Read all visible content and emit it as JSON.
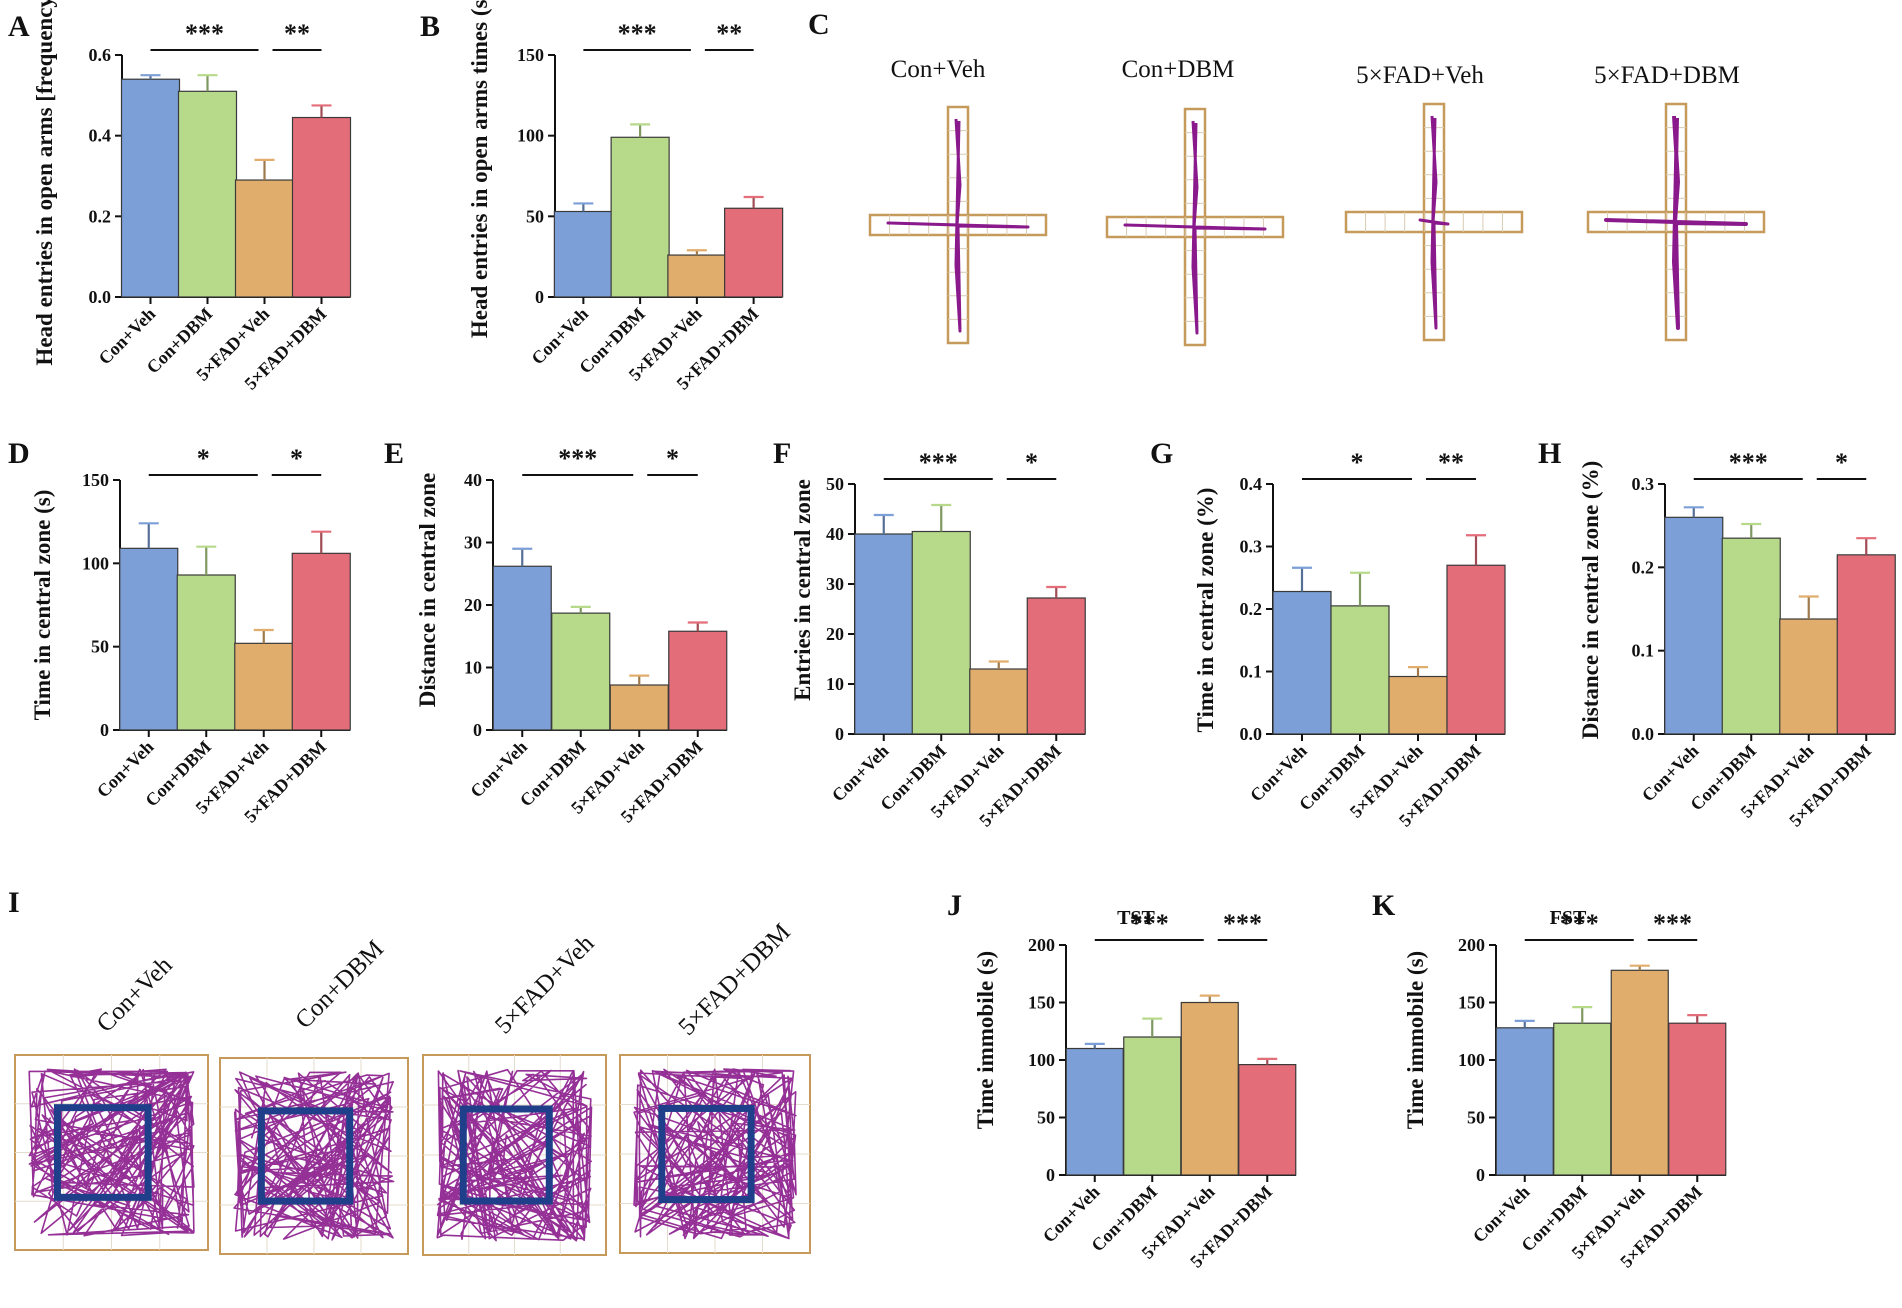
{
  "colors": {
    "Con+Veh": "#7b9fd6",
    "Con+DBM": "#b6d98a",
    "5×FAD+Veh": "#e0ad6c",
    "5×FAD+DBM": "#e36d78",
    "track": "#8a1a8c",
    "arena": "#c59a5a",
    "center_zone": "#1f3f8a"
  },
  "chart_data": [
    {
      "panel": "A",
      "type": "bar",
      "ylabel": "Head entries in open arms [frequency]",
      "categories": [
        "Con+Veh",
        "Con+DBM",
        "5×FAD+Veh",
        "5×FAD+DBM"
      ],
      "values": [
        0.54,
        0.51,
        0.29,
        0.445
      ],
      "errors": [
        0.01,
        0.04,
        0.05,
        0.03
      ],
      "ylim": [
        0,
        0.6
      ],
      "yticks": [
        "0.0",
        "0.2",
        "0.4",
        "0.6"
      ],
      "significance": [
        {
          "from": 0,
          "to": 2,
          "label": "***"
        },
        {
          "from": 2,
          "to": 3,
          "label": "**"
        }
      ]
    },
    {
      "panel": "B",
      "type": "bar",
      "ylabel": "Head entries in open arms times (s)",
      "categories": [
        "Con+Veh",
        "Con+DBM",
        "5×FAD+Veh",
        "5×FAD+DBM"
      ],
      "values": [
        53,
        99,
        26,
        55
      ],
      "errors": [
        5,
        8,
        3,
        7
      ],
      "ylim": [
        0,
        150
      ],
      "yticks": [
        "0",
        "50",
        "100",
        "150"
      ],
      "significance": [
        {
          "from": 0,
          "to": 2,
          "label": "***"
        },
        {
          "from": 2,
          "to": 3,
          "label": "**"
        }
      ]
    },
    {
      "panel": "D",
      "type": "bar",
      "ylabel": "Time in central zone (s)",
      "categories": [
        "Con+Veh",
        "Con+DBM",
        "5×FAD+Veh",
        "5×FAD+DBM"
      ],
      "values": [
        109,
        93,
        52,
        106
      ],
      "errors": [
        15,
        17,
        8,
        13
      ],
      "ylim": [
        0,
        150
      ],
      "yticks": [
        "0",
        "50",
        "100",
        "150"
      ],
      "significance": [
        {
          "from": 0,
          "to": 2,
          "label": "*"
        },
        {
          "from": 2,
          "to": 3,
          "label": "*"
        }
      ]
    },
    {
      "panel": "E",
      "type": "bar",
      "ylabel": "Distance in central zone",
      "categories": [
        "Con+Veh",
        "Con+DBM",
        "5×FAD+Veh",
        "5×FAD+DBM"
      ],
      "values": [
        26.2,
        18.7,
        7.2,
        15.8
      ],
      "errors": [
        2.8,
        1.0,
        1.5,
        1.4
      ],
      "ylim": [
        0,
        40
      ],
      "yticks": [
        "0",
        "10",
        "20",
        "30",
        "40"
      ],
      "significance": [
        {
          "from": 0,
          "to": 2,
          "label": "***"
        },
        {
          "from": 2,
          "to": 3,
          "label": "*"
        }
      ]
    },
    {
      "panel": "F",
      "type": "bar",
      "ylabel": "Entries in central zone",
      "categories": [
        "Con+Veh",
        "Con+DBM",
        "5×FAD+Veh",
        "5×FAD+DBM"
      ],
      "values": [
        40,
        40.5,
        13,
        27.2
      ],
      "errors": [
        3.8,
        5.3,
        1.5,
        2.2
      ],
      "ylim": [
        0,
        50
      ],
      "yticks": [
        "0",
        "10",
        "20",
        "30",
        "40",
        "50"
      ],
      "significance": [
        {
          "from": 0,
          "to": 2,
          "label": "***"
        },
        {
          "from": 2,
          "to": 3,
          "label": "*"
        }
      ]
    },
    {
      "panel": "G",
      "type": "bar",
      "ylabel": "Time in central zone (%)",
      "categories": [
        "Con+Veh",
        "Con+DBM",
        "5×FAD+Veh",
        "5×FAD+DBM"
      ],
      "values": [
        0.228,
        0.205,
        0.092,
        0.27
      ],
      "errors": [
        0.038,
        0.053,
        0.015,
        0.048
      ],
      "ylim": [
        0,
        0.4
      ],
      "yticks": [
        "0.0",
        "0.1",
        "0.2",
        "0.3",
        "0.4"
      ],
      "significance": [
        {
          "from": 0,
          "to": 2,
          "label": "*"
        },
        {
          "from": 2,
          "to": 3,
          "label": "**"
        }
      ]
    },
    {
      "panel": "H",
      "type": "bar",
      "ylabel": "Distance in central zone (%)",
      "categories": [
        "Con+Veh",
        "Con+DBM",
        "5×FAD+Veh",
        "5×FAD+DBM"
      ],
      "values": [
        0.26,
        0.235,
        0.138,
        0.215
      ],
      "errors": [
        0.012,
        0.017,
        0.027,
        0.02
      ],
      "ylim": [
        0,
        0.3
      ],
      "yticks": [
        "0.0",
        "0.1",
        "0.2",
        "0.3"
      ],
      "significance": [
        {
          "from": 0,
          "to": 2,
          "label": "***"
        },
        {
          "from": 2,
          "to": 3,
          "label": "*"
        }
      ]
    },
    {
      "panel": "J",
      "type": "bar",
      "title": "TST",
      "ylabel": "Time immobile (s)",
      "categories": [
        "Con+Veh",
        "Con+DBM",
        "5×FAD+Veh",
        "5×FAD+DBM"
      ],
      "values": [
        110,
        120,
        150,
        96
      ],
      "errors": [
        4,
        16,
        6,
        5
      ],
      "ylim": [
        0,
        200
      ],
      "yticks": [
        "0",
        "50",
        "100",
        "150",
        "200"
      ],
      "significance": [
        {
          "from": 0,
          "to": 2,
          "label": "***"
        },
        {
          "from": 2,
          "to": 3,
          "label": "***"
        }
      ]
    },
    {
      "panel": "K",
      "type": "bar",
      "title": "FST",
      "ylabel": "Time immobile (s)",
      "categories": [
        "Con+Veh",
        "Con+DBM",
        "5×FAD+Veh",
        "5×FAD+DBM"
      ],
      "values": [
        128,
        132,
        178,
        132
      ],
      "errors": [
        6,
        14,
        4,
        7
      ],
      "ylim": [
        0,
        200
      ],
      "yticks": [
        "0",
        "50",
        "100",
        "150",
        "200"
      ],
      "significance": [
        {
          "from": 0,
          "to": 2,
          "label": "***"
        },
        {
          "from": 2,
          "to": 3,
          "label": "***"
        }
      ]
    }
  ],
  "maze_panel": {
    "letter": "C",
    "labels": [
      "Con+Veh",
      "Con+DBM",
      "5×FAD+Veh",
      "5×FAD+DBM"
    ]
  },
  "field_panel": {
    "letter": "I",
    "labels": [
      "Con+Veh",
      "Con+DBM",
      "5×FAD+Veh",
      "5×FAD+DBM"
    ]
  }
}
